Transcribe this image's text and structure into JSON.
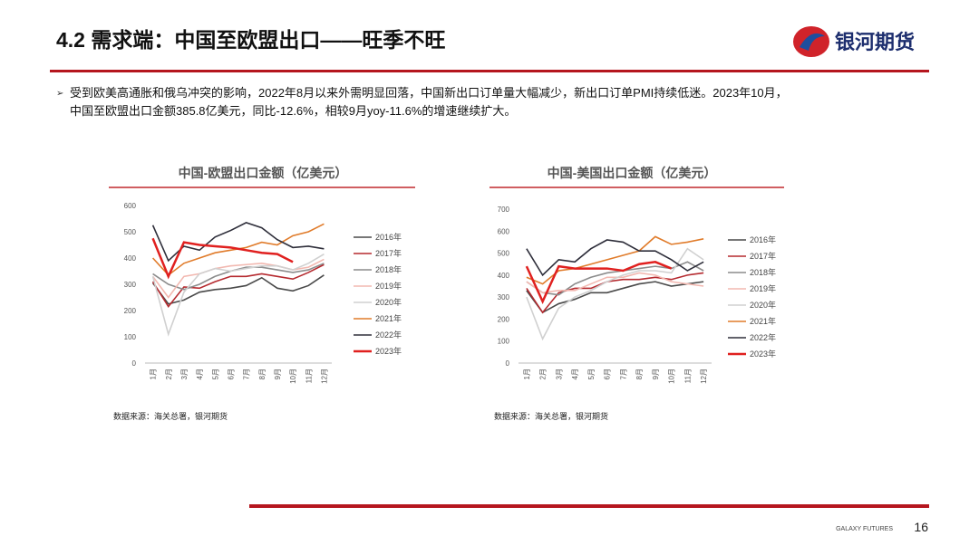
{
  "header": {
    "title": "4.2 需求端：中国至欧盟出口——旺季不旺",
    "logo": "银河期货"
  },
  "bullet": [
    "受到欧美高通胀和俄乌冲突的影响，2022年8月以来外需明显回落，中国新出口订单量大幅减少，新出口订单PMI持续低迷。2023年10月，",
    "中国至欧盟出口金额385.8亿美元，同比-12.6%，相较9月yoy-11.6%的增速继续扩大。"
  ],
  "chart_data": [
    {
      "type": "line",
      "title": "中国-欧盟出口金额（亿美元）",
      "source": "数据来源：海关总署，银河期货",
      "categories": [
        "1月",
        "2月",
        "3月",
        "4月",
        "5月",
        "6月",
        "7月",
        "8月",
        "9月",
        "10月",
        "11月",
        "12月"
      ],
      "ylim": [
        0,
        600
      ],
      "yticks": [
        0,
        100,
        200,
        300,
        400,
        500,
        600
      ],
      "series": [
        {
          "name": "2016年",
          "color": "#4a4a4a",
          "values": [
            305,
            225,
            240,
            270,
            280,
            285,
            295,
            325,
            285,
            275,
            295,
            335
          ]
        },
        {
          "name": "2017年",
          "color": "#b52a2f",
          "values": [
            310,
            215,
            290,
            285,
            310,
            330,
            330,
            340,
            330,
            320,
            345,
            375
          ]
        },
        {
          "name": "2018年",
          "color": "#8c8c8c",
          "values": [
            340,
            300,
            280,
            300,
            330,
            350,
            365,
            365,
            355,
            345,
            355,
            380
          ]
        },
        {
          "name": "2019年",
          "color": "#f2b8b0",
          "values": [
            330,
            250,
            330,
            340,
            360,
            370,
            375,
            380,
            370,
            355,
            365,
            395
          ]
        },
        {
          "name": "2020年",
          "color": "#d0d0d0",
          "values": [
            330,
            110,
            270,
            340,
            360,
            350,
            360,
            370,
            370,
            355,
            380,
            415
          ]
        },
        {
          "name": "2021年",
          "color": "#e07b2a",
          "values": [
            400,
            335,
            380,
            400,
            420,
            430,
            440,
            460,
            450,
            485,
            500,
            530
          ]
        },
        {
          "name": "2022年",
          "color": "#2e2e3a",
          "values": [
            525,
            390,
            445,
            430,
            480,
            505,
            535,
            515,
            470,
            440,
            445,
            435
          ]
        },
        {
          "name": "2023年",
          "color": "#e0201f",
          "values": [
            475,
            330,
            460,
            450,
            445,
            440,
            430,
            420,
            415,
            385,
            null,
            null
          ]
        }
      ]
    },
    {
      "type": "line",
      "title": "中国-美国出口金额（亿美元）",
      "source": "数据来源：海关总署，银河期货",
      "categories": [
        "1月",
        "2月",
        "3月",
        "4月",
        "5月",
        "6月",
        "7月",
        "8月",
        "9月",
        "10月",
        "11月",
        "12月"
      ],
      "ylim": [
        0,
        700
      ],
      "yticks": [
        0,
        100,
        200,
        300,
        400,
        500,
        600,
        700
      ],
      "series": [
        {
          "name": "2016年",
          "color": "#4a4a4a",
          "values": [
            330,
            230,
            270,
            290,
            320,
            320,
            340,
            360,
            370,
            350,
            360,
            370
          ]
        },
        {
          "name": "2017年",
          "color": "#b52a2f",
          "values": [
            340,
            230,
            320,
            340,
            340,
            370,
            380,
            380,
            390,
            380,
            400,
            410
          ]
        },
        {
          "name": "2018年",
          "color": "#8c8c8c",
          "values": [
            370,
            320,
            310,
            360,
            390,
            410,
            420,
            430,
            440,
            430,
            460,
            420
          ]
        },
        {
          "name": "2019年",
          "color": "#f2b8b0",
          "values": [
            370,
            320,
            330,
            330,
            360,
            390,
            390,
            410,
            400,
            370,
            360,
            350
          ]
        },
        {
          "name": "2020年",
          "color": "#d0d0d0",
          "values": [
            300,
            110,
            250,
            300,
            330,
            370,
            400,
            420,
            420,
            410,
            520,
            470
          ]
        },
        {
          "name": "2021年",
          "color": "#e07b2a",
          "values": [
            390,
            360,
            420,
            430,
            450,
            470,
            490,
            510,
            575,
            540,
            550,
            565
          ]
        },
        {
          "name": "2022年",
          "color": "#2e2e3a",
          "values": [
            520,
            400,
            470,
            460,
            520,
            560,
            550,
            510,
            510,
            470,
            420,
            460
          ]
        },
        {
          "name": "2023年",
          "color": "#e0201f",
          "values": [
            440,
            280,
            440,
            430,
            430,
            430,
            420,
            450,
            460,
            430,
            null,
            null
          ]
        }
      ]
    }
  ],
  "footer": {
    "brand": "GALAXY FUTURES",
    "page": "16"
  }
}
